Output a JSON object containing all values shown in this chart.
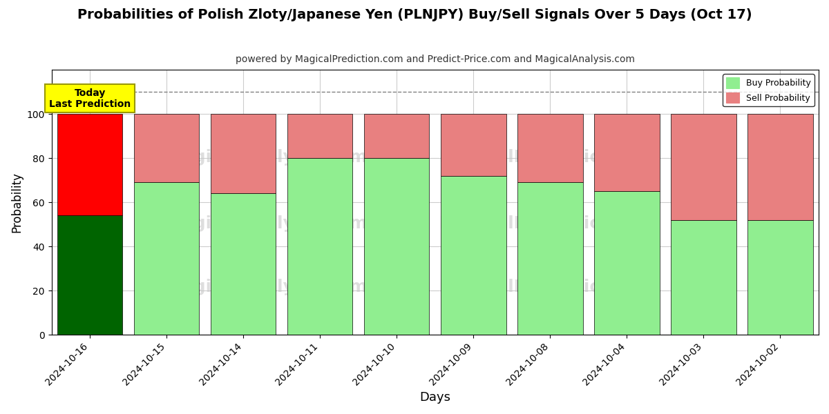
{
  "title": "Probabilities of Polish Zloty/Japanese Yen (PLNJPY) Buy/Sell Signals Over 5 Days (Oct 17)",
  "subtitle": "powered by MagicalPrediction.com and Predict-Price.com and MagicalAnalysis.com",
  "xlabel": "Days",
  "ylabel": "Probability",
  "dates": [
    "2024-10-16",
    "2024-10-15",
    "2024-10-14",
    "2024-10-11",
    "2024-10-10",
    "2024-10-09",
    "2024-10-08",
    "2024-10-04",
    "2024-10-03",
    "2024-10-02"
  ],
  "buy_values": [
    54,
    69,
    64,
    80,
    80,
    72,
    69,
    65,
    52,
    52
  ],
  "sell_values": [
    46,
    31,
    36,
    20,
    20,
    28,
    31,
    35,
    48,
    48
  ],
  "buy_colors": [
    "#006400",
    "#90EE90",
    "#90EE90",
    "#90EE90",
    "#90EE90",
    "#90EE90",
    "#90EE90",
    "#90EE90",
    "#90EE90",
    "#90EE90"
  ],
  "sell_colors": [
    "#FF0000",
    "#E88080",
    "#E88080",
    "#E88080",
    "#E88080",
    "#E88080",
    "#E88080",
    "#E88080",
    "#E88080",
    "#E88080"
  ],
  "today_label": "Today\nLast Prediction",
  "today_label_bg": "#FFFF00",
  "legend_buy_color": "#90EE90",
  "legend_sell_color": "#E88080",
  "legend_buy_label": "Buy Probability",
  "legend_sell_label": "Sell Probability",
  "ylim": [
    0,
    120
  ],
  "yticks": [
    0,
    20,
    40,
    60,
    80,
    100
  ],
  "dashed_line_y": 110,
  "background_color": "#ffffff",
  "grid_color": "#cccccc",
  "bar_edge_color": "#000000",
  "bar_edge_width": 0.5,
  "bar_width": 0.85,
  "title_fontsize": 14,
  "subtitle_fontsize": 10,
  "xlabel_fontsize": 13,
  "ylabel_fontsize": 12,
  "tick_fontsize": 10
}
